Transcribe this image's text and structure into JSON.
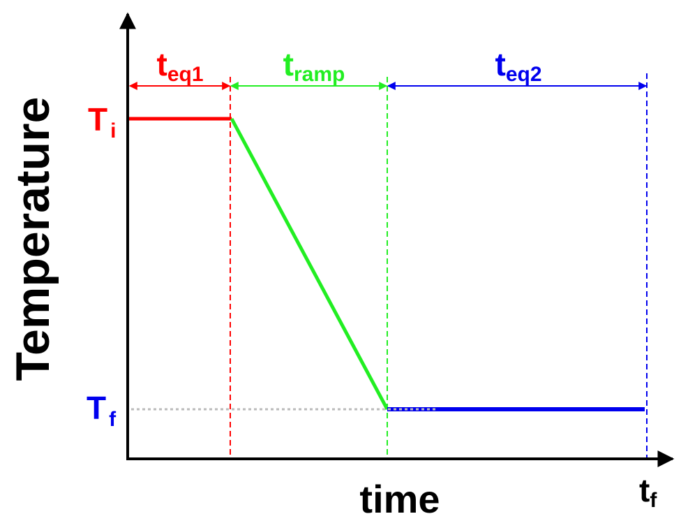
{
  "axes": {
    "y_label": "Temperature",
    "x_label": "time",
    "x_end": {
      "symbol": "t",
      "subscript": "f"
    }
  },
  "levels": [
    {
      "symbol": "T",
      "subscript": "i"
    },
    {
      "symbol": "T",
      "subscript": "f"
    }
  ],
  "phases": [
    {
      "symbol": "t",
      "subscript": "eq1"
    },
    {
      "symbol": "t",
      "subscript": "ramp"
    },
    {
      "symbol": "t",
      "subscript": "eq2"
    }
  ]
}
